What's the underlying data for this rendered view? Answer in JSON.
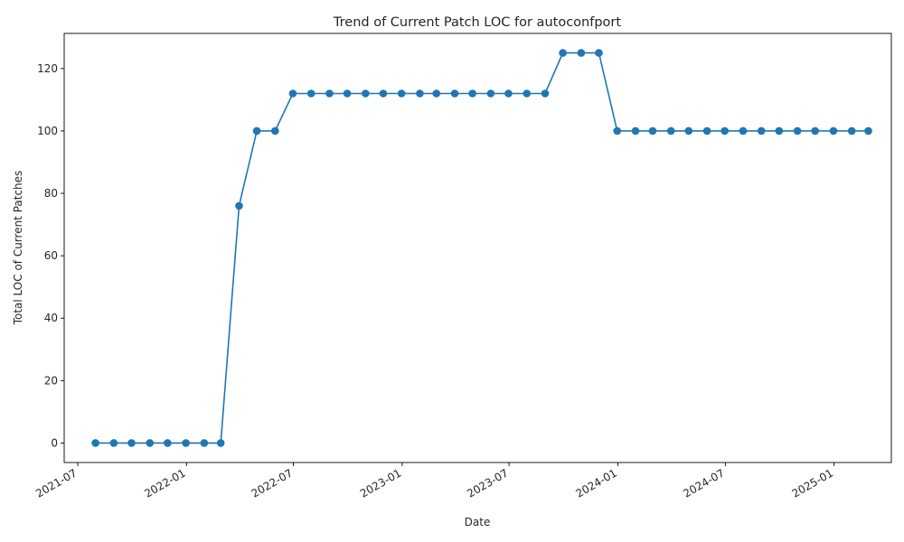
{
  "chart_data": {
    "type": "line",
    "title": "Trend of Current Patch LOC for autoconfport",
    "xlabel": "Date",
    "ylabel": "Total LOC of Current Patches",
    "series_color": "#1f77b4",
    "marker": "circle",
    "grid": false,
    "x_ticks": [
      "2021-07",
      "2022-01",
      "2022-07",
      "2023-01",
      "2023-07",
      "2024-01",
      "2024-07",
      "2025-01"
    ],
    "y_ticks": [
      0,
      20,
      40,
      60,
      80,
      100,
      120
    ],
    "xlim": [
      "2021-06-08",
      "2025-04-08"
    ],
    "ylim": [
      -6.25,
      131.25
    ],
    "x": [
      "2021-07-31",
      "2021-08-31",
      "2021-09-30",
      "2021-10-31",
      "2021-11-30",
      "2021-12-31",
      "2022-01-31",
      "2022-02-28",
      "2022-03-31",
      "2022-04-30",
      "2022-05-31",
      "2022-06-30",
      "2022-07-31",
      "2022-08-31",
      "2022-09-30",
      "2022-10-31",
      "2022-11-30",
      "2022-12-31",
      "2023-01-31",
      "2023-02-28",
      "2023-03-31",
      "2023-04-30",
      "2023-05-31",
      "2023-06-30",
      "2023-07-31",
      "2023-08-31",
      "2023-09-30",
      "2023-10-31",
      "2023-11-30",
      "2023-12-31",
      "2024-01-31",
      "2024-02-29",
      "2024-03-31",
      "2024-04-30",
      "2024-05-31",
      "2024-06-30",
      "2024-07-31",
      "2024-08-31",
      "2024-09-30",
      "2024-10-31",
      "2024-11-30",
      "2024-12-31",
      "2025-01-31",
      "2025-02-28"
    ],
    "values": [
      0,
      0,
      0,
      0,
      0,
      0,
      0,
      0,
      76,
      100,
      100,
      112,
      112,
      112,
      112,
      112,
      112,
      112,
      112,
      112,
      112,
      112,
      112,
      112,
      112,
      112,
      125,
      125,
      125,
      100,
      100,
      100,
      100,
      100,
      100,
      100,
      100,
      100,
      100,
      100,
      100,
      100,
      100,
      100
    ]
  }
}
